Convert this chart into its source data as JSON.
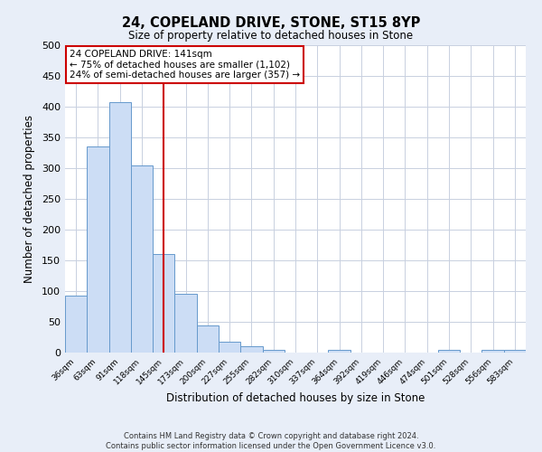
{
  "title": "24, COPELAND DRIVE, STONE, ST15 8YP",
  "subtitle": "Size of property relative to detached houses in Stone",
  "xlabel": "Distribution of detached houses by size in Stone",
  "ylabel": "Number of detached properties",
  "bin_labels": [
    "36sqm",
    "63sqm",
    "91sqm",
    "118sqm",
    "145sqm",
    "173sqm",
    "200sqm",
    "227sqm",
    "255sqm",
    "282sqm",
    "310sqm",
    "337sqm",
    "364sqm",
    "392sqm",
    "419sqm",
    "446sqm",
    "474sqm",
    "501sqm",
    "528sqm",
    "556sqm",
    "583sqm"
  ],
  "bar_values": [
    93,
    336,
    407,
    304,
    160,
    95,
    44,
    17,
    10,
    5,
    0,
    0,
    5,
    0,
    0,
    0,
    0,
    5,
    0,
    5,
    5
  ],
  "bar_color": "#ccddf5",
  "bar_edge_color": "#6699cc",
  "vline_color": "#cc0000",
  "annotation_text": "24 COPELAND DRIVE: 141sqm\n← 75% of detached houses are smaller (1,102)\n24% of semi-detached houses are larger (357) →",
  "annotation_box_color": "#ffffff",
  "annotation_box_edge": "#cc0000",
  "ylim": [
    0,
    500
  ],
  "yticks": [
    0,
    50,
    100,
    150,
    200,
    250,
    300,
    350,
    400,
    450,
    500
  ],
  "footnote": "Contains HM Land Registry data © Crown copyright and database right 2024.\nContains public sector information licensed under the Open Government Licence v3.0.",
  "bg_color": "#e8eef8",
  "plot_bg_color": "#ffffff",
  "grid_color": "#c8d0e0"
}
